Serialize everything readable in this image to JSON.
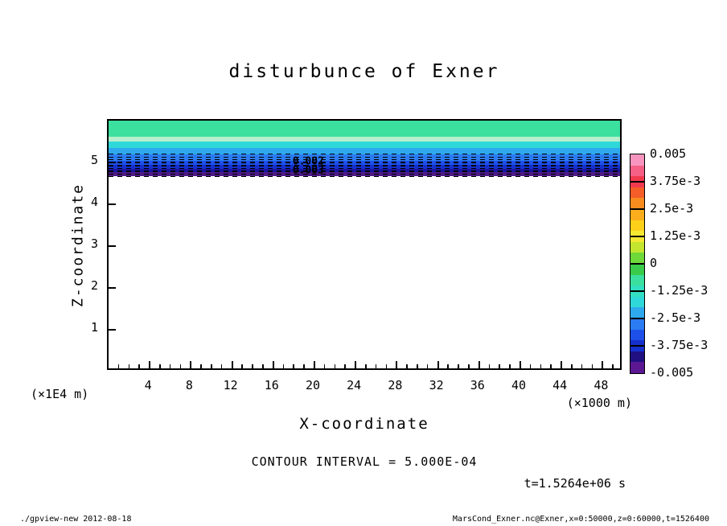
{
  "chart_data": {
    "type": "heatmap",
    "subtype": "filled-contour",
    "title": "disturbunce of Exner",
    "xlabel": "X-coordinate",
    "ylabel": "Z-coordinate",
    "x_unit": "(×1000 m)",
    "y_unit": "(×1E4 m)",
    "xlim": [
      0,
      50
    ],
    "ylim": [
      0,
      6
    ],
    "x_ticks": [
      4,
      8,
      12,
      16,
      20,
      24,
      28,
      32,
      36,
      40,
      44,
      48
    ],
    "y_ticks": [
      1,
      2,
      3,
      4,
      5
    ],
    "contour_interval_text": "CONTOUR INTERVAL = 5.000E-04",
    "time_label": "t=1.5264e+06 s",
    "bands": [
      {
        "z_top": 6.0,
        "z_bot": 5.62,
        "color": "#3BDF9E",
        "value": "-5e-4 to 0"
      },
      {
        "z_top": 5.62,
        "z_bot": 5.5,
        "color": "#B5EFCD",
        "value": "near 0"
      },
      {
        "z_top": 5.5,
        "z_bot": 5.35,
        "color": "#2FD8D8",
        "value": "-1e-3"
      },
      {
        "z_top": 5.35,
        "z_bot": 5.19,
        "color": "#2FA9EE",
        "value": "-1.5e-3"
      },
      {
        "z_top": 5.19,
        "z_bot": 5.04,
        "color": "#2B7BF2",
        "value": "-2e-3"
      },
      {
        "z_top": 5.04,
        "z_bot": 4.94,
        "color": "#1D50E8",
        "value": "-2.5e-3"
      },
      {
        "z_top": 4.94,
        "z_bot": 4.85,
        "color": "#1530CC",
        "value": "-3e-3"
      },
      {
        "z_top": 4.85,
        "z_bot": 4.76,
        "color": "#1A159E",
        "value": "-4e-3"
      },
      {
        "z_top": 4.76,
        "z_bot": 4.67,
        "color": "#4D1A86",
        "value": "-5e-3"
      },
      {
        "z_top": 4.67,
        "z_bot": 0.0,
        "color": "#FFFFFF",
        "value": "0"
      }
    ],
    "dashed_contours_z": [
      5.21,
      5.14,
      5.08,
      5.01,
      4.94,
      4.87,
      4.8,
      4.73,
      4.68
    ],
    "contour_labels": [
      {
        "text": "0.002",
        "x": 19.4,
        "z": 5.02
      },
      {
        "text": "0.003",
        "x": 19.4,
        "z": 4.81
      }
    ],
    "colorbar": {
      "min": -0.005,
      "max": 0.005,
      "labels_top_to_bottom": [
        "0.005",
        "3.75e-3",
        "2.5e-3",
        "1.25e-3",
        "0",
        "-1.25e-3",
        "-2.5e-3",
        "-3.75e-3",
        "-0.005"
      ],
      "colors_top_to_bottom": [
        "#F895BE",
        "#F55F86",
        "#F23A4E",
        "#F55E28",
        "#F98C1E",
        "#FBAE1C",
        "#FDD01A",
        "#F5E832",
        "#C4E62E",
        "#6FD93A",
        "#3BCB4A",
        "#3BDF9E",
        "#32DFC0",
        "#2FD8D8",
        "#2FA9EE",
        "#2B7BF2",
        "#1D50E8",
        "#1530CC",
        "#201082",
        "#5C1792"
      ]
    }
  },
  "footer": {
    "left": "./gpview-new  2012-08-18",
    "right": "MarsCond_Exner.nc@Exner,x=0:50000,z=0:60000,t=1526400"
  }
}
